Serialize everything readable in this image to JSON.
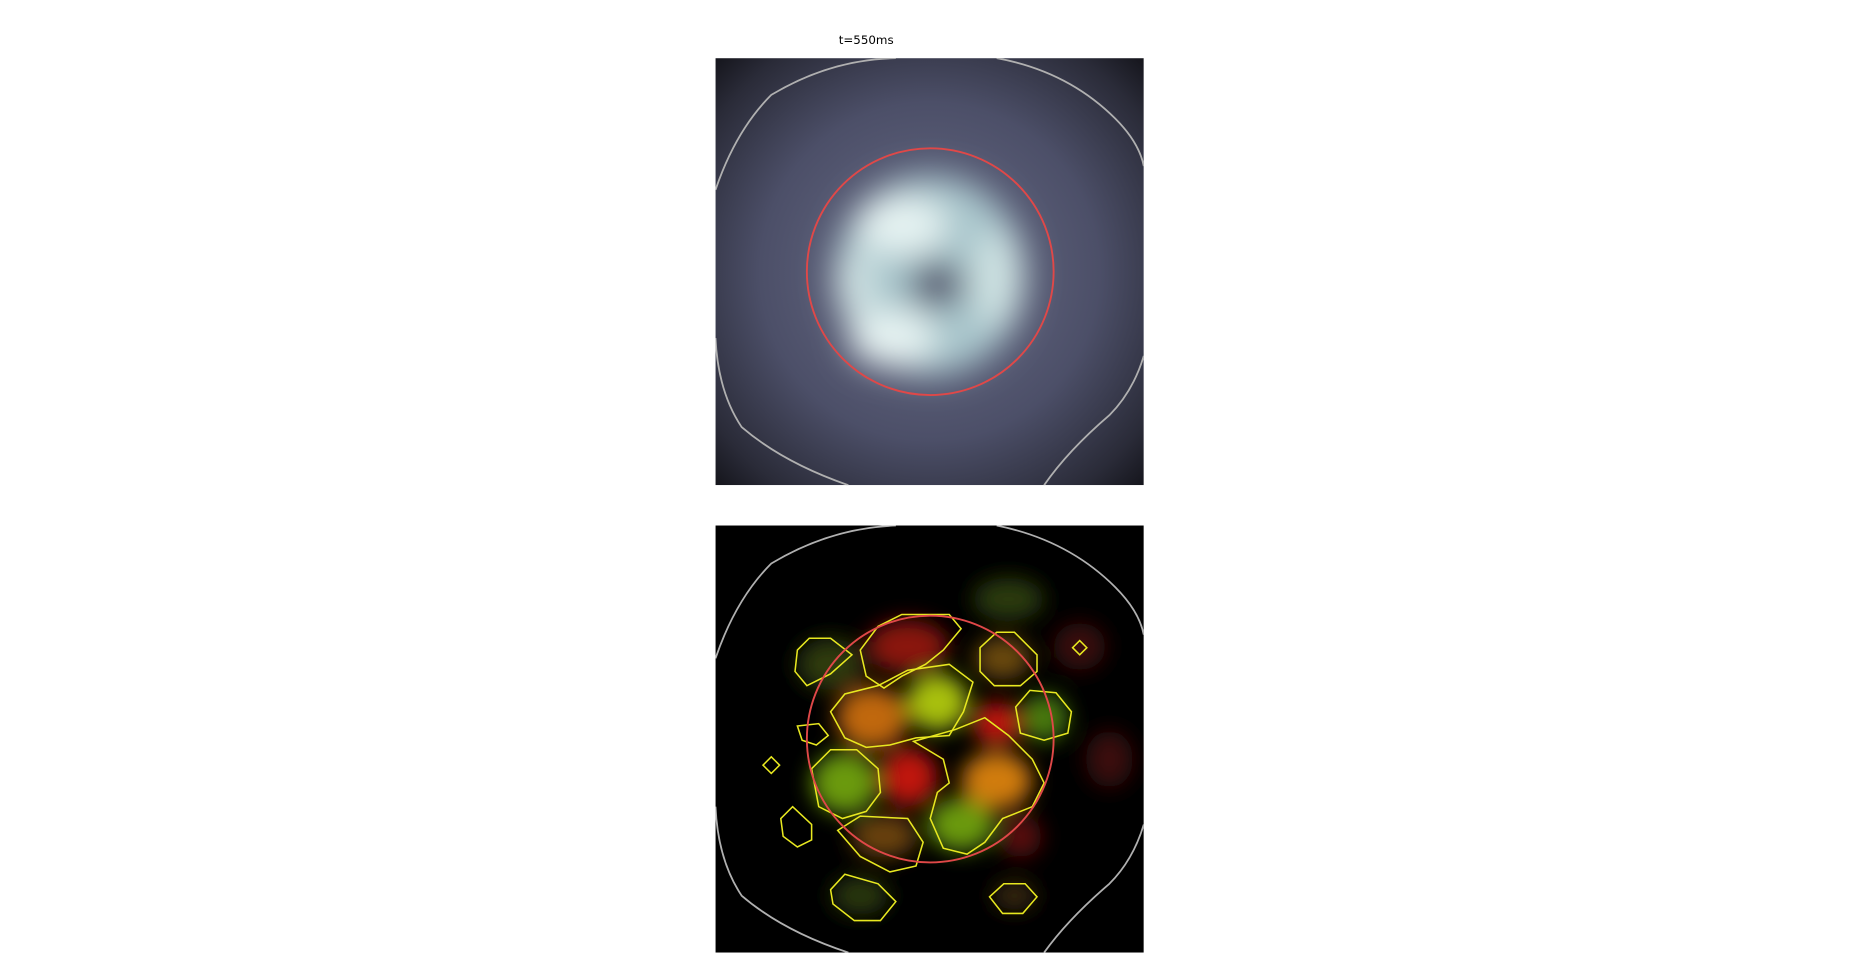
{
  "title": "t=550ms"
}
